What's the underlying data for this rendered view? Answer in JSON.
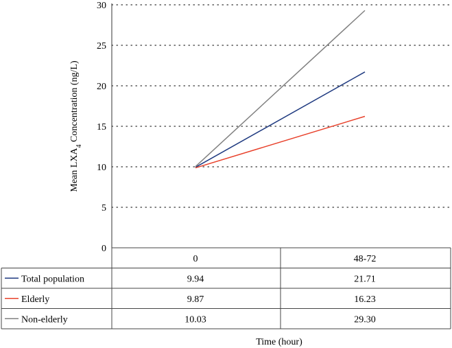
{
  "chart_data": {
    "type": "line",
    "x": [
      "0",
      "48-72"
    ],
    "series": [
      {
        "name": "Total population",
        "values": [
          9.94,
          21.71
        ],
        "labels": [
          "9.94",
          "21.71"
        ],
        "color": "#1f3a80"
      },
      {
        "name": "Elderly",
        "values": [
          9.87,
          16.23
        ],
        "labels": [
          "9.87",
          "16.23"
        ],
        "color": "#e8402a"
      },
      {
        "name": "Non-elderly",
        "values": [
          10.03,
          29.3
        ],
        "labels": [
          "10.03",
          "29.30"
        ],
        "color": "#808080"
      }
    ],
    "ylabel_prefix": "Mean LXA",
    "ylabel_subscript": "4",
    "ylabel_suffix": " Concentration (ng/L)",
    "xlabel": "Time (hour)",
    "ylim": [
      0,
      30
    ],
    "yticks": [
      0,
      5,
      10,
      15,
      20,
      25,
      30
    ],
    "grid": "horizontal dotted",
    "legend": "data table below plot"
  }
}
